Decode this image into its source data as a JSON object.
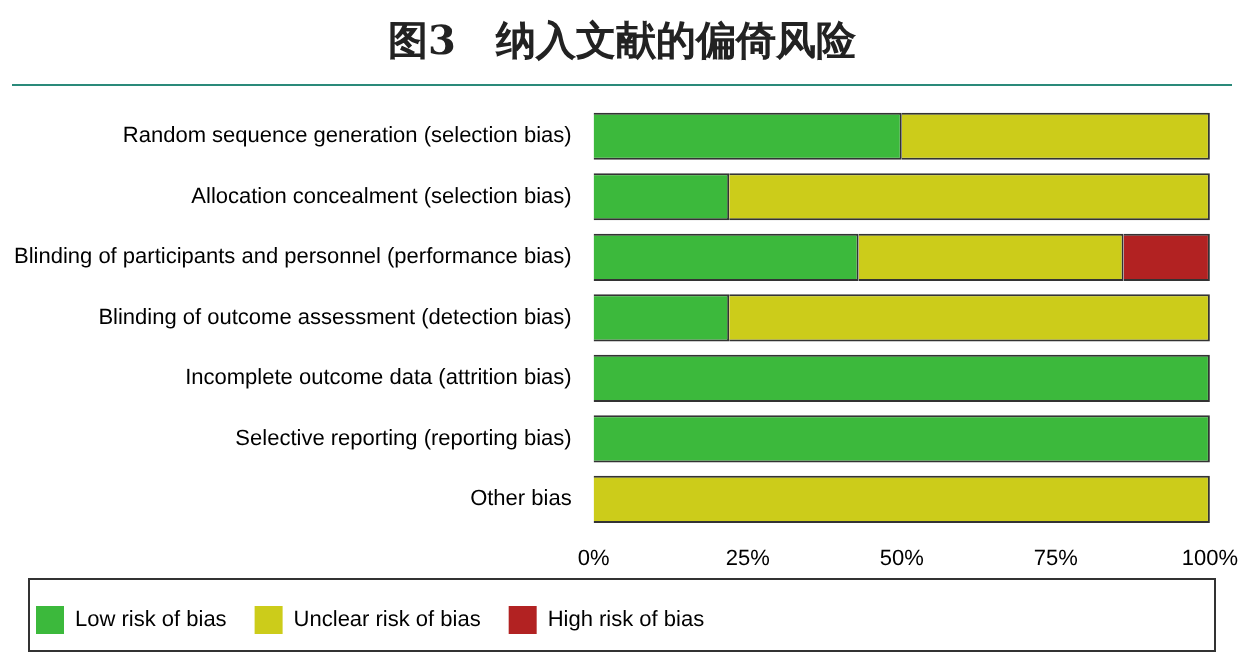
{
  "chart_data": {
    "type": "bar",
    "title": "图3　纳入文献的偏倚风险",
    "orientation": "horizontal",
    "stacked": true,
    "legend": "bottom",
    "categories": [
      "Random sequence generation (selection bias)",
      "Allocation concealment (selection bias)",
      "Blinding of participants and personnel (performance bias)",
      "Blinding of outcome assessment (detection bias)",
      "Incomplete outcome data (attrition bias)",
      "Selective reporting (reporting bias)",
      "Other bias"
    ],
    "series": [
      {
        "name": "Low risk of bias",
        "color": "#3cb93c",
        "values": [
          50,
          22,
          43,
          22,
          100,
          100,
          0
        ]
      },
      {
        "name": "Unclear risk of bias",
        "color": "#cccc1a",
        "values": [
          50,
          78,
          43,
          78,
          0,
          0,
          100
        ]
      },
      {
        "name": "High risk of bias",
        "color": "#b22222",
        "values": [
          0,
          0,
          14,
          0,
          0,
          0,
          0
        ]
      }
    ],
    "xlim": [
      0,
      100
    ],
    "xticks": [
      {
        "value": 0,
        "label": "0%"
      },
      {
        "value": 25,
        "label": "25%"
      },
      {
        "value": 50,
        "label": "50%"
      },
      {
        "value": 75,
        "label": "75%"
      },
      {
        "value": 100,
        "label": "100%"
      }
    ],
    "grid": false
  }
}
